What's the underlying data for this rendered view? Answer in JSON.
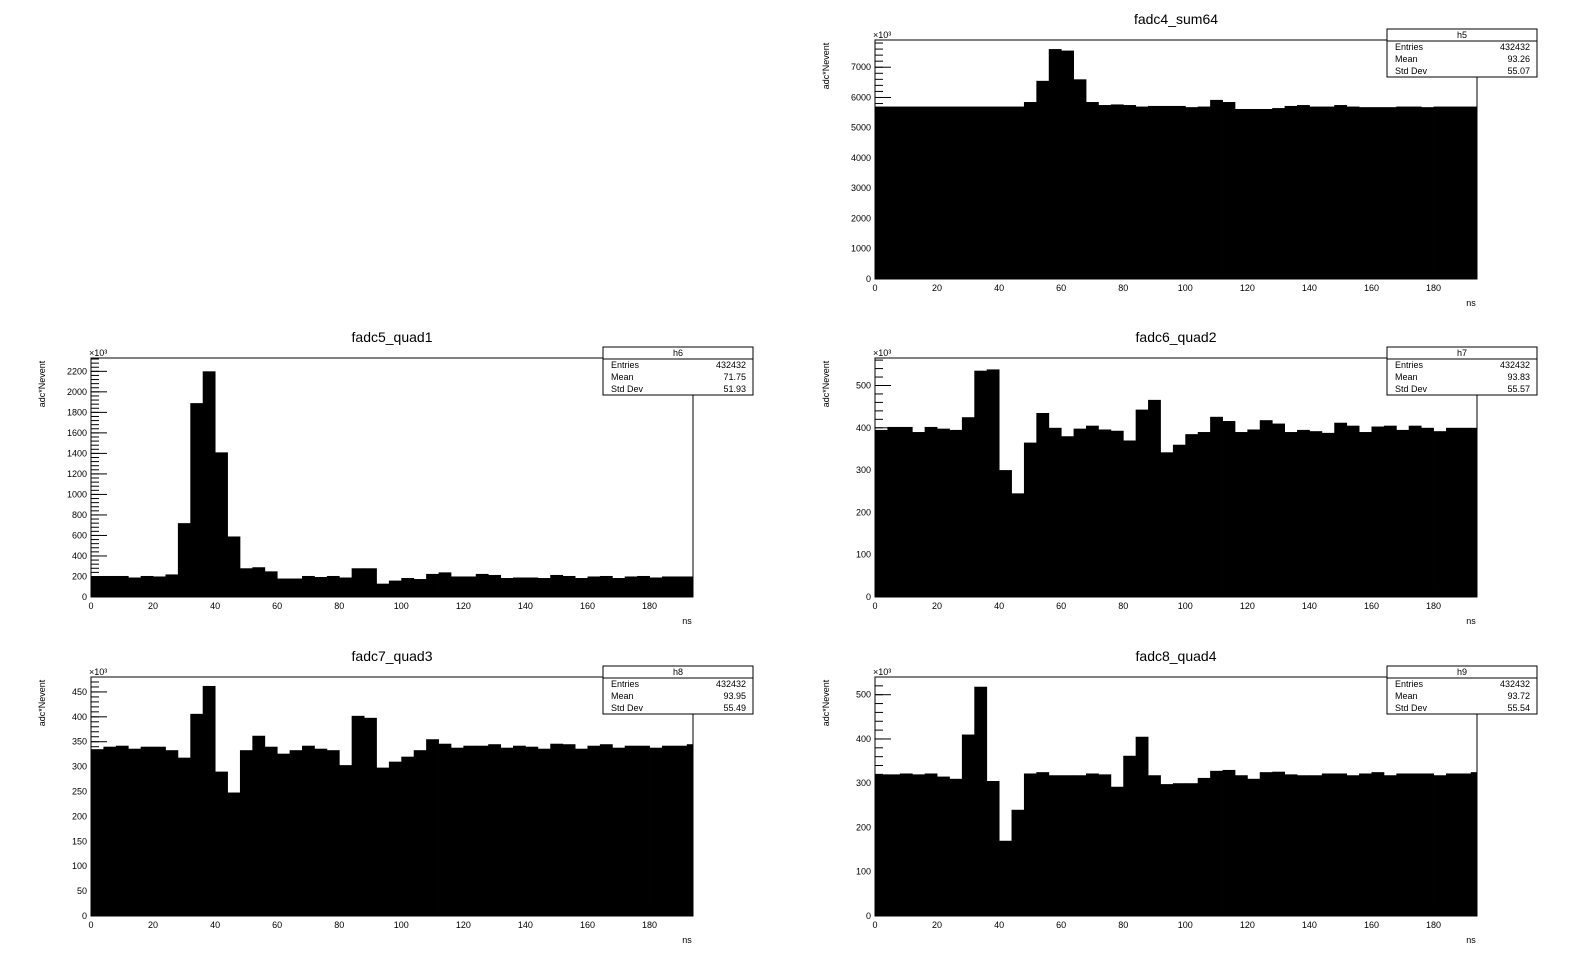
{
  "chart_data": [
    {
      "type": "bar",
      "title": "fadc4_sum64",
      "xlabel": "ns",
      "ylabel": "adc*Nevent",
      "multiplier_label": "×10³",
      "xlim": [
        0,
        194
      ],
      "ylim": [
        0,
        7900
      ],
      "xticks": [
        "0",
        "20",
        "40",
        "60",
        "80",
        "100",
        "120",
        "140",
        "160",
        "180"
      ],
      "yticks": [
        "0",
        "1000",
        "2000",
        "3000",
        "4000",
        "5000",
        "6000",
        "7000"
      ],
      "bin_width": 4,
      "stats": {
        "name": "h5",
        "rows": [
          {
            "label": "Entries",
            "value": "432432"
          },
          {
            "label": "Mean",
            "value": "93.26"
          },
          {
            "label": "Std Dev",
            "value": "55.07"
          }
        ]
      },
      "values": [
        5700,
        5700,
        5700,
        5700,
        5700,
        5700,
        5700,
        5700,
        5700,
        5700,
        5700,
        5700,
        5850,
        6550,
        7600,
        7550,
        6600,
        5850,
        5750,
        5770,
        5750,
        5700,
        5720,
        5720,
        5720,
        5680,
        5700,
        5920,
        5850,
        5620,
        5620,
        5620,
        5650,
        5720,
        5750,
        5700,
        5700,
        5750,
        5700,
        5680,
        5680,
        5680,
        5700,
        5700,
        5680,
        5700,
        5700,
        5700,
        5700
      ]
    },
    {
      "type": "bar",
      "title": "fadc5_quad1",
      "xlabel": "ns",
      "ylabel": "adc*Nevent",
      "multiplier_label": "×10³",
      "xlim": [
        0,
        194
      ],
      "ylim": [
        0,
        2330
      ],
      "xticks": [
        "0",
        "20",
        "40",
        "60",
        "80",
        "100",
        "120",
        "140",
        "160",
        "180"
      ],
      "yticks": [
        "0",
        "200",
        "400",
        "600",
        "800",
        "1000",
        "1200",
        "1400",
        "1600",
        "1800",
        "2000",
        "2200"
      ],
      "bin_width": 4,
      "stats": {
        "name": "h6",
        "rows": [
          {
            "label": "Entries",
            "value": "432432"
          },
          {
            "label": "Mean",
            "value": "71.75"
          },
          {
            "label": "Std Dev",
            "value": "51.93"
          }
        ]
      },
      "values": [
        200,
        205,
        205,
        190,
        205,
        200,
        220,
        720,
        1890,
        2200,
        1410,
        590,
        280,
        290,
        250,
        180,
        180,
        205,
        195,
        205,
        190,
        280,
        280,
        130,
        160,
        185,
        175,
        225,
        240,
        200,
        200,
        225,
        215,
        185,
        190,
        190,
        185,
        215,
        205,
        185,
        200,
        205,
        185,
        200,
        205,
        190,
        200,
        200,
        200
      ]
    },
    {
      "type": "bar",
      "title": "fadc6_quad2",
      "xlabel": "ns",
      "ylabel": "adc*Nevent",
      "multiplier_label": "×10³",
      "xlim": [
        0,
        194
      ],
      "ylim": [
        0,
        565
      ],
      "xticks": [
        "0",
        "20",
        "40",
        "60",
        "80",
        "100",
        "120",
        "140",
        "160",
        "180"
      ],
      "yticks": [
        "0",
        "100",
        "200",
        "300",
        "400",
        "500"
      ],
      "bin_width": 4,
      "stats": {
        "name": "h7",
        "rows": [
          {
            "label": "Entries",
            "value": "432432"
          },
          {
            "label": "Mean",
            "value": "93.83"
          },
          {
            "label": "Std Dev",
            "value": "55.57"
          }
        ]
      },
      "values": [
        395,
        402,
        402,
        390,
        402,
        398,
        395,
        425,
        535,
        538,
        300,
        245,
        365,
        435,
        400,
        380,
        398,
        405,
        396,
        393,
        370,
        443,
        466,
        342,
        360,
        385,
        390,
        426,
        416,
        390,
        396,
        418,
        410,
        390,
        395,
        392,
        388,
        412,
        405,
        390,
        403,
        405,
        395,
        405,
        400,
        392,
        400,
        400,
        400
      ]
    },
    {
      "type": "bar",
      "title": "fadc7_quad3",
      "xlabel": "ns",
      "ylabel": "adc*Nevent",
      "multiplier_label": "×10³",
      "xlim": [
        0,
        194
      ],
      "ylim": [
        0,
        480
      ],
      "xticks": [
        "0",
        "20",
        "40",
        "60",
        "80",
        "100",
        "120",
        "140",
        "160",
        "180"
      ],
      "yticks": [
        "0",
        "50",
        "100",
        "150",
        "200",
        "250",
        "300",
        "350",
        "400",
        "450"
      ],
      "bin_width": 4,
      "stats": {
        "name": "h8",
        "rows": [
          {
            "label": "Entries",
            "value": "432432"
          },
          {
            "label": "Mean",
            "value": "93.95"
          },
          {
            "label": "Std Dev",
            "value": "55.49"
          }
        ]
      },
      "values": [
        335,
        340,
        342,
        336,
        340,
        340,
        333,
        318,
        406,
        462,
        290,
        248,
        333,
        362,
        340,
        326,
        333,
        342,
        336,
        333,
        303,
        402,
        398,
        298,
        310,
        320,
        333,
        355,
        346,
        338,
        342,
        342,
        345,
        338,
        342,
        340,
        336,
        346,
        345,
        336,
        342,
        345,
        338,
        342,
        342,
        338,
        342,
        342,
        345
      ]
    },
    {
      "type": "bar",
      "title": "fadc8_quad4",
      "xlabel": "ns",
      "ylabel": "adc*Nevent",
      "multiplier_label": "×10³",
      "xlim": [
        0,
        194
      ],
      "ylim": [
        0,
        540
      ],
      "xticks": [
        "0",
        "20",
        "40",
        "60",
        "80",
        "100",
        "120",
        "140",
        "160",
        "180"
      ],
      "yticks": [
        "0",
        "100",
        "200",
        "300",
        "400",
        "500"
      ],
      "bin_width": 4,
      "stats": {
        "name": "h9",
        "rows": [
          {
            "label": "Entries",
            "value": "432432"
          },
          {
            "label": "Mean",
            "value": "93.72"
          },
          {
            "label": "Std Dev",
            "value": "55.54"
          }
        ]
      },
      "values": [
        320,
        320,
        322,
        320,
        322,
        315,
        310,
        410,
        518,
        305,
        170,
        240,
        322,
        325,
        318,
        318,
        318,
        322,
        320,
        292,
        362,
        405,
        318,
        298,
        300,
        300,
        312,
        328,
        330,
        318,
        310,
        325,
        326,
        320,
        318,
        318,
        322,
        322,
        318,
        322,
        325,
        318,
        322,
        322,
        322,
        318,
        322,
        322,
        325
      ]
    }
  ]
}
